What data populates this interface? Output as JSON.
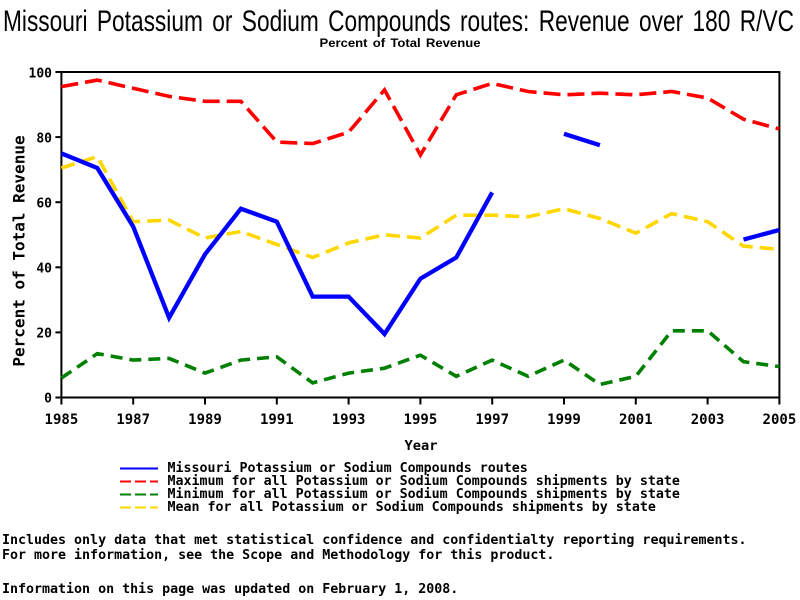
{
  "title": "Missouri Potassium or Sodium Compounds routes: Revenue over 180 R/VC",
  "subtitle": "Percent of Total Revenue",
  "axes": {
    "x": {
      "label": "Year",
      "ticks": [
        1985,
        1987,
        1989,
        1991,
        1993,
        1995,
        1997,
        1999,
        2001,
        2003,
        2005
      ],
      "range": [
        1985,
        2005
      ]
    },
    "y": {
      "label": "Percent of Total Revenue",
      "ticks": [
        0,
        20,
        40,
        60,
        80,
        100
      ],
      "range": [
        0,
        100
      ]
    }
  },
  "legend": [
    {
      "label": "Missouri Potassium or Sodium Compounds routes",
      "color": "#0000ff",
      "dash": "solid"
    },
    {
      "label": "Maximum for all Potassium or Sodium Compounds shipments by state",
      "color": "#ff0000",
      "dash": "dashed"
    },
    {
      "label": "Minimum for all Potassium or Sodium Compounds shipments by state",
      "color": "#008000",
      "dash": "dashed"
    },
    {
      "label": "Mean for all Potassium or Sodium Compounds shipments by state",
      "color": "#ffd700",
      "dash": "dashed"
    }
  ],
  "footnotes": [
    "Includes only data that met statistical confidence and confidentialty reporting requirements.",
    "For more information, see the Scope and Methodology for this product.",
    "Information on this page was updated on February 1, 2008."
  ],
  "chart_data": {
    "type": "line",
    "title": "Missouri Potassium or Sodium Compounds routes: Revenue over 180 R/VC",
    "subtitle": "Percent of Total Revenue",
    "xlabel": "Year",
    "ylabel": "Percent of Total Revenue",
    "xlim": [
      1985,
      2005
    ],
    "ylim": [
      0,
      100
    ],
    "grid": false,
    "legend_position": "bottom",
    "x": [
      1985,
      1986,
      1987,
      1988,
      1989,
      1990,
      1991,
      1992,
      1993,
      1994,
      1995,
      1996,
      1997,
      1998,
      1999,
      2000,
      2001,
      2002,
      2003,
      2004,
      2005
    ],
    "series": [
      {
        "name": "Missouri Potassium or Sodium Compounds routes",
        "color": "#0000ff",
        "style": "solid",
        "values": [
          75,
          70.5,
          52.5,
          24.5,
          44,
          58,
          54,
          31,
          31,
          19.5,
          36.5,
          43,
          63,
          null,
          81,
          77.5,
          null,
          null,
          null,
          48.5,
          51.5
        ]
      },
      {
        "name": "Maximum for all Potassium or Sodium Compounds shipments by state",
        "color": "#ff0000",
        "style": "dashed",
        "values": [
          95.5,
          97.5,
          95,
          92.5,
          91,
          91,
          78.5,
          78,
          81.5,
          94.5,
          74.5,
          93,
          96.5,
          94,
          93,
          93.5,
          93,
          94,
          92,
          85.5,
          82.5
        ]
      },
      {
        "name": "Minimum for all Potassium or Sodium Compounds shipments by state",
        "color": "#008000",
        "style": "dashed",
        "values": [
          6,
          13.5,
          11.5,
          12,
          7.5,
          11.5,
          12.5,
          4.5,
          7.5,
          9,
          13,
          6.5,
          11.5,
          6.5,
          11.5,
          4,
          6.5,
          20.5,
          20.5,
          11,
          9.5
        ]
      },
      {
        "name": "Mean for all Potassium or Sodium Compounds shipments by state",
        "color": "#ffd700",
        "style": "dashed",
        "values": [
          70.5,
          74,
          54,
          54.5,
          49,
          51,
          47,
          43,
          47.5,
          50,
          49,
          56,
          56,
          55.5,
          58,
          55,
          50.5,
          56.5,
          54,
          46.5,
          45.5
        ]
      }
    ]
  }
}
